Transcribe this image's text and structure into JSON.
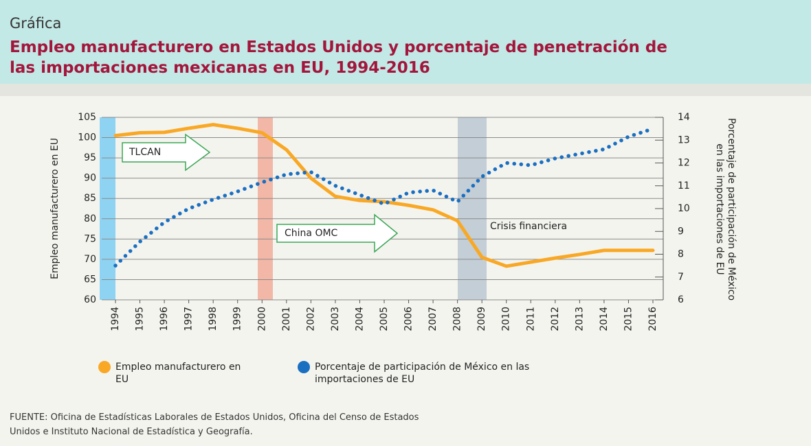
{
  "chart_data": {
    "type": "line",
    "kicker": "Gráfica",
    "title": "Empleo manufacturero en Estados Unidos y porcentaje de penetración de las importaciones mexicanas en EU, 1994-2016",
    "categories": [
      "1994",
      "1995",
      "1996",
      "1997",
      "1998",
      "1999",
      "2000",
      "2001",
      "2002",
      "2003",
      "2004",
      "2005",
      "2006",
      "2007",
      "2008",
      "2009",
      "2010",
      "2011",
      "2012",
      "2013",
      "2014",
      "2015",
      "2016"
    ],
    "series": [
      {
        "name": "Empleo manufacturero en EU",
        "color": "#f9a825",
        "style": "solid",
        "values": [
          100.5,
          101.2,
          101.3,
          102.3,
          103.2,
          102.3,
          101.2,
          97,
          90,
          85.5,
          84.5,
          84.2,
          83.3,
          82.2,
          79.5,
          70.5,
          68.3,
          69.3,
          70.3,
          71.2,
          72.2,
          72.2,
          72.2
        ]
      },
      {
        "name": "Porcentaje de participación de México en las importaciones de EU",
        "color": "#1b6fc1",
        "style": "dotted",
        "axis": "y2",
        "values": [
          7.5,
          8.55,
          9.4,
          10,
          10.4,
          10.75,
          11.15,
          11.5,
          11.6,
          11,
          10.6,
          10.2,
          10.7,
          10.8,
          10.3,
          11.4,
          12,
          11.9,
          12.2,
          12.4,
          12.6,
          13.15,
          13.5
        ]
      }
    ],
    "ylabel": "Empleo manufacturero en EU",
    "y2label": "Porcentaje de participación de México en las importaciones de EU",
    "ylim": [
      60,
      105
    ],
    "yticks": [
      60,
      65,
      70,
      75,
      80,
      85,
      90,
      95,
      100,
      105
    ],
    "y2lim": [
      6,
      14
    ],
    "y2ticks": [
      6,
      7,
      8,
      9,
      10,
      11,
      12,
      13,
      14
    ],
    "grid": true,
    "annotations": [
      "TLCAN",
      "China OMC",
      "Crisis financiera"
    ],
    "source": "FUENTE: Oficina de Estadísticas Laborales de Estados Unidos, Oficina del Censo de Estados Unidos e Instituto Nacional de Estadística y Geografía."
  }
}
